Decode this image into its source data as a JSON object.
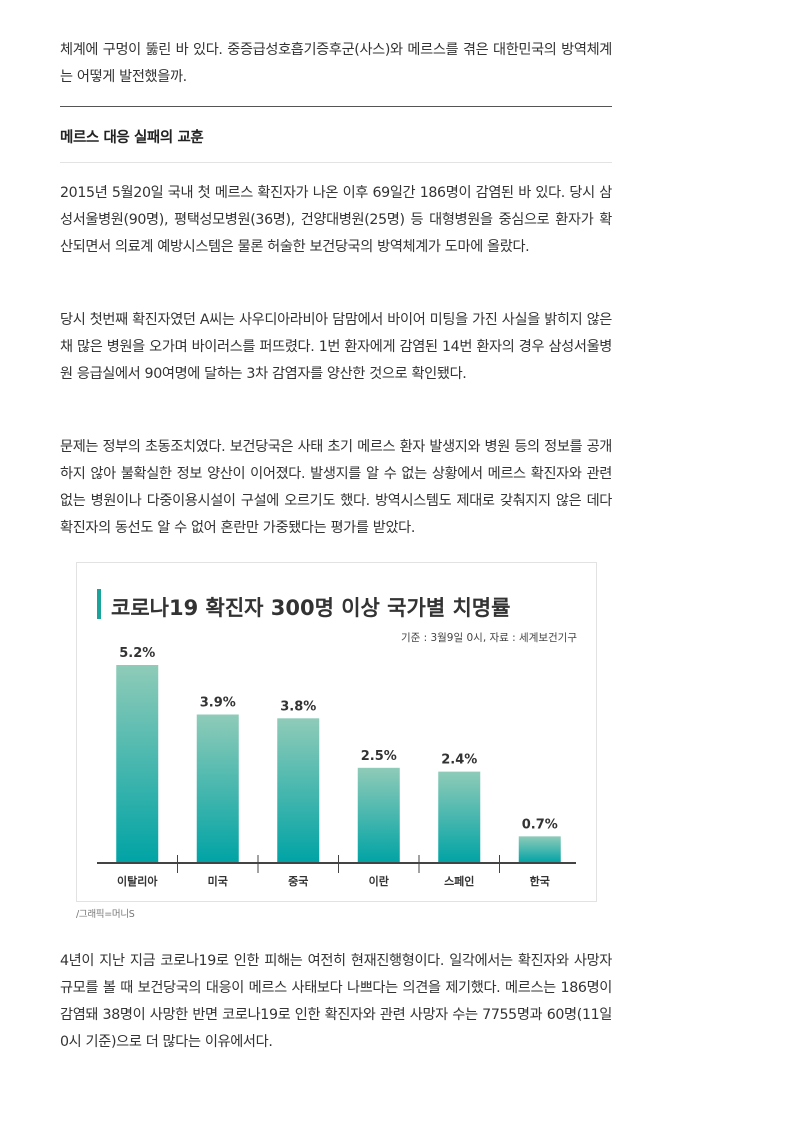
{
  "intro": {
    "text": "체계에 구멍이 뚫린 바 있다. 중증급성호흡기증후군(사스)와 메르스를 겪은 대한민국의 방역체계는 어떻게 발전했을까."
  },
  "section": {
    "heading": "메르스 대응 실패의 교훈"
  },
  "paragraphs": [
    "2015년 5월20일 국내 첫 메르스 확진자가 나온 이후 69일간 186명이 감염된 바 있다. 당시 삼성서울병원(90명), 평택성모병원(36명), 건양대병원(25명) 등 대형병원을 중심으로 환자가 확산되면서 의료계 예방시스템은 물론 허술한 보건당국의 방역체계가 도마에 올랐다.",
    "당시 첫번째 확진자였던 A씨는 사우디아라비아 담맘에서 바이어 미팅을 가진 사실을 밝히지 않은 채 많은 병원을 오가며 바이러스를 퍼뜨렸다. 1번 환자에게 감염된 14번 환자의 경우 삼성서울병원 응급실에서 90여명에 달하는 3차 감염자를 양산한 것으로 확인됐다.",
    "문제는 정부의 초동조치였다. 보건당국은 사태 초기 메르스 환자 발생지와 병원 등의 정보를 공개하지 않아 불확실한 정보 양산이 이어졌다. 발생지를 알 수 없는 상황에서 메르스 확진자와 관련 없는 병원이나 다중이용시설이 구설에 오르기도 했다. 방역시스템도 제대로 갖춰지지 않은 데다 확진자의 동선도 알 수 없어 혼란만 가중됐다는 평가를 받았다."
  ],
  "figure": {
    "caption": "/그래픽=머니S"
  },
  "chart_data": {
    "type": "bar",
    "title": "코로나19 확진자 300명 이상 국가별 치명률",
    "subtitle": "기준 : 3월9일 0시, 자료 : 세계보건기구",
    "categories": [
      "이탈리아",
      "미국",
      "중국",
      "이란",
      "스페인",
      "한국"
    ],
    "values": [
      5.2,
      3.9,
      3.8,
      2.5,
      2.4,
      0.7
    ],
    "value_labels": [
      "5.2%",
      "3.9%",
      "3.8%",
      "2.5%",
      "2.4%",
      "0.7%"
    ],
    "xlabel": "",
    "ylabel": "",
    "ylim": [
      0,
      5.2
    ],
    "legend": "none",
    "grid": false,
    "colors": {
      "bar_top": "#8fcbb8",
      "bar_bottom": "#00a3a5",
      "title_accent": "#1aa39b",
      "title_text": "#333333",
      "axis": "#444444"
    }
  },
  "closing": {
    "text": "4년이 지난 지금 코로나19로 인한 피해는 여전히 현재진행형이다. 일각에서는 확진자와 사망자 규모를 볼 때 보건당국의 대응이 메르스 사태보다 나쁘다는 의견을 제기했다. 메르스는 186명이 감염돼 38명이 사망한 반면 코로나19로 인한 확진자와 관련 사망자 수는 7755명과 60명(11일 0시 기준)으로 더 많다는 이유에서다."
  }
}
